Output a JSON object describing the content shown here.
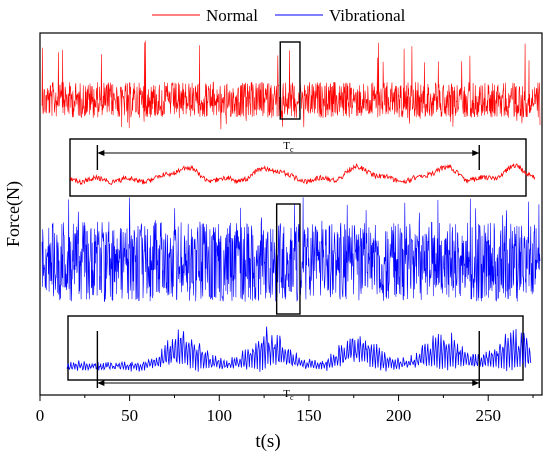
{
  "chart_data": {
    "type": "line",
    "xlabel": "t(s)",
    "ylabel": "Force(N)",
    "xlim": [
      0,
      280
    ],
    "x_ticks": [
      "0",
      "50",
      "100",
      "150",
      "200",
      "250"
    ],
    "x_tick_values": [
      0,
      50,
      100,
      150,
      200,
      250
    ],
    "y_ticks_shown": false,
    "legend": {
      "placement": "top-center",
      "entries": [
        {
          "name": "Normal",
          "color": "#ff0000"
        },
        {
          "name": "Vibrational",
          "color": "#0000ff"
        }
      ]
    },
    "series": [
      {
        "name": "Normal",
        "color": "#ff0000",
        "x_range": [
          0,
          280
        ],
        "highlight_window": [
          134,
          145
        ],
        "style": "dense random signal",
        "inset": {
          "annotation": "T",
          "annotation_subscript": "c",
          "period_start": 32,
          "period_end": 245,
          "x_range": [
            17,
            276
          ],
          "feature_peaks": [
            80,
            128,
            178,
            225,
            265
          ]
        }
      },
      {
        "name": "Vibrational",
        "color": "#0000ff",
        "x_range": [
          0,
          280
        ],
        "highlight_window": [
          132,
          145
        ],
        "style": "dense random signal",
        "inset": {
          "annotation": "T",
          "annotation_subscript": "c",
          "period_start": 32,
          "period_end": 245,
          "x_range": [
            15,
            274
          ],
          "feature_peaks": [
            80,
            128,
            178,
            225,
            265
          ]
        }
      }
    ]
  },
  "colors": {
    "normal": "#ff0000",
    "vibrational": "#0000ff",
    "axes": "#000000",
    "background": "#ffffff"
  }
}
